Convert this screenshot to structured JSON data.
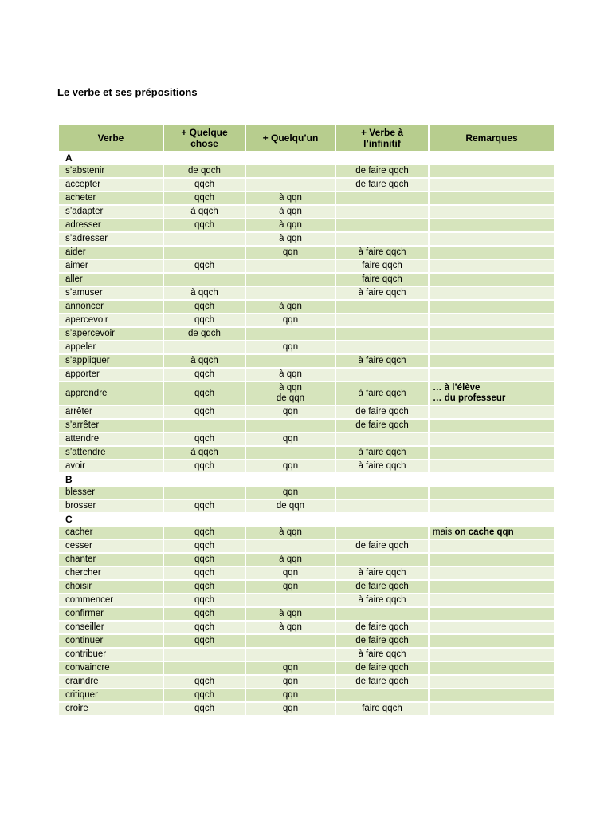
{
  "page": {
    "title": "Le verbe et ses prépositions"
  },
  "table": {
    "headers": [
      "Verbe",
      "+ Quelque\nchose",
      "+ Quelqu’un",
      "+ Verbe à\nl’infinitif",
      "Remarques"
    ],
    "sections": [
      {
        "letter": "A",
        "rows": [
          [
            "s’abstenir",
            "de qqch",
            "",
            "de faire qqch",
            ""
          ],
          [
            "accepter",
            "qqch",
            "",
            "de faire qqch",
            ""
          ],
          [
            "acheter",
            "qqch",
            "à qqn",
            "",
            ""
          ],
          [
            "s’adapter",
            "à qqch",
            "à qqn",
            "",
            ""
          ],
          [
            "adresser",
            "qqch",
            "à qqn",
            "",
            ""
          ],
          [
            "s’adresser",
            "",
            "à qqn",
            "",
            ""
          ],
          [
            "aider",
            "",
            "qqn",
            "à faire qqch",
            ""
          ],
          [
            "aimer",
            "qqch",
            "",
            "faire qqch",
            ""
          ],
          [
            "aller",
            "",
            "",
            "faire qqch",
            ""
          ],
          [
            "s’amuser",
            "à qqch",
            "",
            "à faire qqch",
            ""
          ],
          [
            "annoncer",
            "qqch",
            "à qqn",
            "",
            ""
          ],
          [
            "apercevoir",
            "qqch",
            "qqn",
            "",
            ""
          ],
          [
            "s’apercevoir",
            "de qqch",
            "",
            "",
            ""
          ],
          [
            "appeler",
            "",
            "qqn",
            "",
            ""
          ],
          [
            "s’appliquer",
            "à qqch",
            "",
            "à faire qqch",
            ""
          ],
          [
            "apporter",
            "qqch",
            "à qqn",
            "",
            ""
          ],
          [
            "apprendre",
            "qqch",
            {
              "lines": [
                "à qqn",
                "de qqn"
              ]
            },
            "à faire qqch",
            {
              "lines": [
                "… à l’élève",
                "… du professeur"
              ],
              "bold": true
            }
          ],
          [
            "arrêter",
            "qqch",
            "qqn",
            "de faire qqch",
            ""
          ],
          [
            "s’arrêter",
            "",
            "",
            "de faire qqch",
            ""
          ],
          [
            "attendre",
            "qqch",
            "qqn",
            "",
            ""
          ],
          [
            "s’attendre",
            "à qqch",
            "",
            "à faire qqch",
            ""
          ],
          [
            "avoir",
            "qqch",
            "qqn",
            "à faire qqch",
            ""
          ]
        ]
      },
      {
        "letter": "B",
        "rows": [
          [
            "blesser",
            "",
            "qqn",
            "",
            ""
          ],
          [
            "brosser",
            "qqch",
            "de qqn",
            "",
            ""
          ]
        ]
      },
      {
        "letter": "C",
        "rows": [
          [
            "cacher",
            "qqch",
            "à qqn",
            "",
            {
              "segments": [
                {
                  "text": "mais ",
                  "bold": false
                },
                {
                  "text": "on cache qqn",
                  "bold": true
                }
              ]
            }
          ],
          [
            "cesser",
            "qqch",
            "",
            "de faire qqch",
            ""
          ],
          [
            "chanter",
            "qqch",
            "à qqn",
            "",
            ""
          ],
          [
            "chercher",
            "qqch",
            "qqn",
            "à faire qqch",
            ""
          ],
          [
            "choisir",
            "qqch",
            "qqn",
            "de faire qqch",
            ""
          ],
          [
            "commencer",
            "qqch",
            "",
            "à faire qqch",
            ""
          ],
          [
            "confirmer",
            "qqch",
            "à qqn",
            "",
            ""
          ],
          [
            "conseiller",
            "qqch",
            "à qqn",
            "de faire qqch",
            ""
          ],
          [
            "continuer",
            "qqch",
            "",
            "de faire qqch",
            ""
          ],
          [
            "contribuer",
            "",
            "",
            "à faire qqch",
            ""
          ],
          [
            "convaincre",
            "",
            "qqn",
            "de faire qqch",
            ""
          ],
          [
            "craindre",
            "qqch",
            "qqn",
            "de faire qqch",
            ""
          ],
          [
            "critiquer",
            "qqch",
            "qqn",
            "",
            ""
          ],
          [
            "croire",
            "qqch",
            "qqn",
            "faire qqch",
            ""
          ]
        ]
      }
    ]
  }
}
